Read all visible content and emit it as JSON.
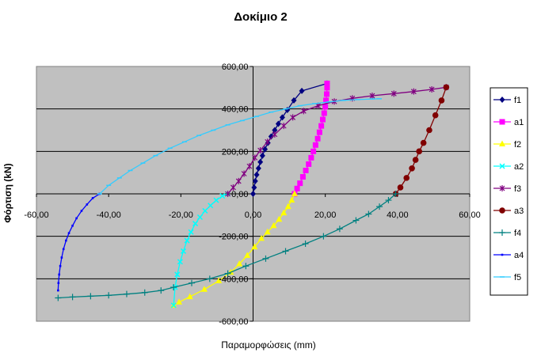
{
  "chart_data": {
    "type": "line",
    "title": "Δοκίμιο 2",
    "xlabel": "Παραμορφώσεις (mm)",
    "ylabel": "Φόρτιση (kN)",
    "xlim": [
      -60,
      60
    ],
    "ylim": [
      -600,
      600
    ],
    "x_ticks": [
      -60,
      -40,
      -20,
      0,
      20,
      40,
      60
    ],
    "x_tick_labels": [
      "-60,00",
      "-40,00",
      "-20,00",
      "0,00",
      "20,00",
      "40,00",
      "60,00"
    ],
    "y_ticks": [
      600,
      400,
      200,
      0,
      -200,
      -400,
      -600
    ],
    "y_tick_labels": [
      "600,00",
      "400,00",
      "200,00",
      "0,00",
      "-200,00",
      "-400,00",
      "-600,00"
    ],
    "grid": "horizontal",
    "plot_background": "#c0c0c0",
    "legend_position": "right",
    "series": [
      {
        "name": "f1",
        "color": "#000080",
        "marker": "diamond",
        "x": [
          0.0,
          0.3,
          0.6,
          1.0,
          1.5,
          2.0,
          2.6,
          3.3,
          4.1,
          5.0,
          6.0,
          7.0,
          8.1,
          9.5,
          11.3,
          13.5,
          20.5
        ],
        "y": [
          0,
          30,
          60,
          90,
          120,
          150,
          180,
          210,
          240,
          270,
          300,
          330,
          360,
          395,
          440,
          485,
          520
        ]
      },
      {
        "name": "a1",
        "color": "#ff00ff",
        "marker": "square",
        "x": [
          20.5,
          20.5,
          20.4,
          20.2,
          20.0,
          19.7,
          19.3,
          18.9,
          18.4,
          17.9,
          17.3,
          16.7,
          16.1,
          15.4,
          14.6,
          13.8,
          13.0,
          12.2,
          11.5
        ],
        "y": [
          520,
          500,
          470,
          440,
          410,
          380,
          350,
          320,
          290,
          260,
          230,
          200,
          170,
          140,
          110,
          80,
          50,
          25,
          0
        ]
      },
      {
        "name": "f2",
        "color": "#ffff00",
        "marker": "triangle",
        "x": [
          11.5,
          10.7,
          9.7,
          8.5,
          7.2,
          5.7,
          4.0,
          2.3,
          0.4,
          -1.6,
          -3.8,
          -6.2,
          -9.5,
          -13.5,
          -17.5,
          -20.5,
          -22.0
        ],
        "y": [
          0,
          -30,
          -60,
          -90,
          -120,
          -150,
          -180,
          -210,
          -250,
          -290,
          -330,
          -370,
          -410,
          -450,
          -485,
          -510,
          -525
        ]
      },
      {
        "name": "a2",
        "color": "#00ffff",
        "marker": "x",
        "x": [
          -22.0,
          -21.6,
          -21.0,
          -20.2,
          -19.3,
          -18.3,
          -17.2,
          -16.0,
          -14.7,
          -13.3,
          -11.8,
          -10.2,
          -8.5,
          -7.0
        ],
        "y": [
          -525,
          -440,
          -380,
          -320,
          -270,
          -220,
          -180,
          -140,
          -110,
          -80,
          -55,
          -30,
          -10,
          0
        ]
      },
      {
        "name": "f3",
        "color": "#800080",
        "marker": "asterisk",
        "x": [
          -7.0,
          -5.5,
          -4.0,
          -2.5,
          -1.0,
          0.5,
          2.0,
          4.0,
          6.0,
          8.5,
          11.0,
          14.0,
          18.0,
          22.5,
          27.5,
          33.0,
          39.0,
          44.5,
          49.5,
          53.5
        ],
        "y": [
          0,
          30,
          60,
          95,
          130,
          170,
          205,
          245,
          280,
          320,
          360,
          390,
          415,
          435,
          450,
          462,
          472,
          482,
          492,
          502
        ]
      },
      {
        "name": "a3",
        "color": "#800000",
        "marker": "circle",
        "x": [
          53.5,
          52.2,
          50.5,
          48.8,
          47.2,
          46.0,
          45.0,
          44.0,
          42.5,
          40.8,
          39.5
        ],
        "y": [
          502,
          440,
          370,
          300,
          240,
          200,
          160,
          120,
          75,
          30,
          0
        ]
      },
      {
        "name": "f4",
        "color": "#008080",
        "marker": "plus",
        "x": [
          39.5,
          37.5,
          35.0,
          32.0,
          28.5,
          24.0,
          19.5,
          14.5,
          9.0,
          3.5,
          -2.0,
          -7.0,
          -12.0,
          -17.0,
          -22.0,
          -25.5,
          -30.0,
          -35.0,
          -40.0,
          -45.0,
          -50.0,
          -54.0
        ],
        "y": [
          0,
          -30,
          -60,
          -95,
          -125,
          -165,
          -200,
          -235,
          -270,
          -305,
          -340,
          -375,
          -400,
          -420,
          -440,
          -455,
          -465,
          -472,
          -478,
          -482,
          -486,
          -490
        ]
      },
      {
        "name": "a4",
        "color": "#0000ff",
        "marker": "dot",
        "x": [
          -54.0,
          -53.9,
          -53.7,
          -53.4,
          -53.0,
          -52.5,
          -51.8,
          -51.0,
          -50.0,
          -48.9,
          -47.5,
          -46.0,
          -44.4,
          -42.5
        ],
        "y": [
          -455,
          -420,
          -380,
          -340,
          -300,
          -260,
          -220,
          -185,
          -150,
          -115,
          -80,
          -50,
          -20,
          0
        ]
      },
      {
        "name": "f5",
        "color": "#33ccff",
        "marker": "dash",
        "x": [
          -42.5,
          -40.0,
          -37.0,
          -34.0,
          -30.5,
          -27.0,
          -23.0,
          -19.0,
          -15.0,
          -11.0,
          -7.0,
          -3.0,
          1.0,
          5.0,
          9.0,
          13.0,
          17.0,
          21.0,
          25.0,
          29.0,
          33.0,
          35.0
        ],
        "y": [
          0,
          40,
          75,
          110,
          145,
          180,
          215,
          245,
          275,
          300,
          325,
          345,
          365,
          385,
          400,
          415,
          425,
          433,
          440,
          444,
          447,
          448
        ]
      }
    ]
  }
}
